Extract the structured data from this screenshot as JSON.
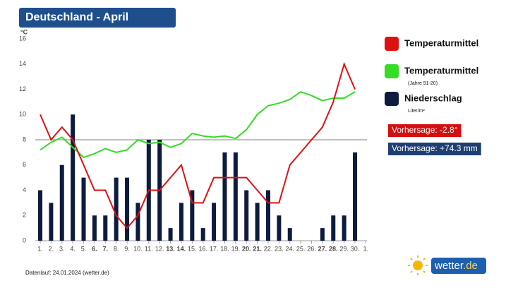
{
  "chart_data": {
    "type": "bar",
    "title": "Deutschland - April",
    "y_label": "°C",
    "ylim": [
      0,
      16
    ],
    "yticks": [
      0,
      2,
      4,
      6,
      8,
      10,
      12,
      14,
      16
    ],
    "hline": 8,
    "categories": [
      "1.",
      "2.",
      "3.",
      "4.",
      "5.",
      "6.",
      "7.",
      "8.",
      "9.",
      "10.",
      "11.",
      "12.",
      "13.",
      "14.",
      "15.",
      "16.",
      "17.",
      "18.",
      "19.",
      "20.",
      "21.",
      "22.",
      "23.",
      "24.",
      "25.",
      "26.",
      "27.",
      "28.",
      "29.",
      "30.",
      "1."
    ],
    "category_label_colors": [
      "#444",
      "#444",
      "#444",
      "#444",
      "#444",
      "#c00000",
      "#c00000",
      "#444",
      "#444",
      "#444",
      "#444",
      "#444",
      "#c00000",
      "#c00000",
      "#444",
      "#444",
      "#444",
      "#444",
      "#444",
      "#c00000",
      "#c00000",
      "#444",
      "#444",
      "#444",
      "#444",
      "#444",
      "#c00000",
      "#c00000",
      "#444",
      "#444",
      "#444"
    ],
    "series": [
      {
        "name": "Niederschlag",
        "legend_note": "Liter/m²",
        "type": "bar",
        "color": "#0d1b3e",
        "values": [
          4,
          3,
          6,
          10,
          5,
          2,
          2,
          5,
          5,
          3,
          8,
          8,
          1,
          3,
          4,
          1,
          3,
          7,
          7,
          4,
          3,
          4,
          2,
          1,
          0,
          0,
          1,
          2,
          2,
          7,
          null
        ]
      },
      {
        "name": "Temperaturmittel",
        "legend_note": "(Jahre 91-20)",
        "type": "line",
        "color": "#33dd22",
        "values": [
          7.2,
          7.8,
          8.2,
          7.4,
          6.6,
          6.9,
          7.3,
          7.0,
          7.2,
          8.0,
          7.7,
          7.8,
          7.4,
          7.7,
          8.5,
          8.3,
          8.2,
          8.3,
          8.1,
          8.8,
          10.0,
          10.7,
          10.9,
          11.2,
          11.8,
          11.5,
          11.1,
          11.3,
          11.3,
          11.8,
          null
        ]
      },
      {
        "name": "Temperaturmittel",
        "type": "line",
        "color": "#dd1111",
        "values": [
          10,
          8,
          9,
          8,
          6,
          4,
          4,
          2,
          1,
          2,
          4,
          4,
          5,
          6,
          3,
          3,
          5,
          5,
          5,
          5,
          4,
          3,
          3,
          6,
          7,
          8,
          9,
          11,
          14,
          12,
          null
        ]
      }
    ],
    "legend_order": [
      2,
      1,
      0
    ],
    "forecasts": [
      {
        "text": "Vorhersage: -2.8°",
        "color": "#d40f0f"
      },
      {
        "text": "Vorhersage: +74.3 mm",
        "color": "#1f3f73"
      }
    ],
    "footer": "Datenlauf: 24.01.2024 (wetter.de)",
    "logo": {
      "name": "wetter",
      "tld": ".de"
    }
  }
}
